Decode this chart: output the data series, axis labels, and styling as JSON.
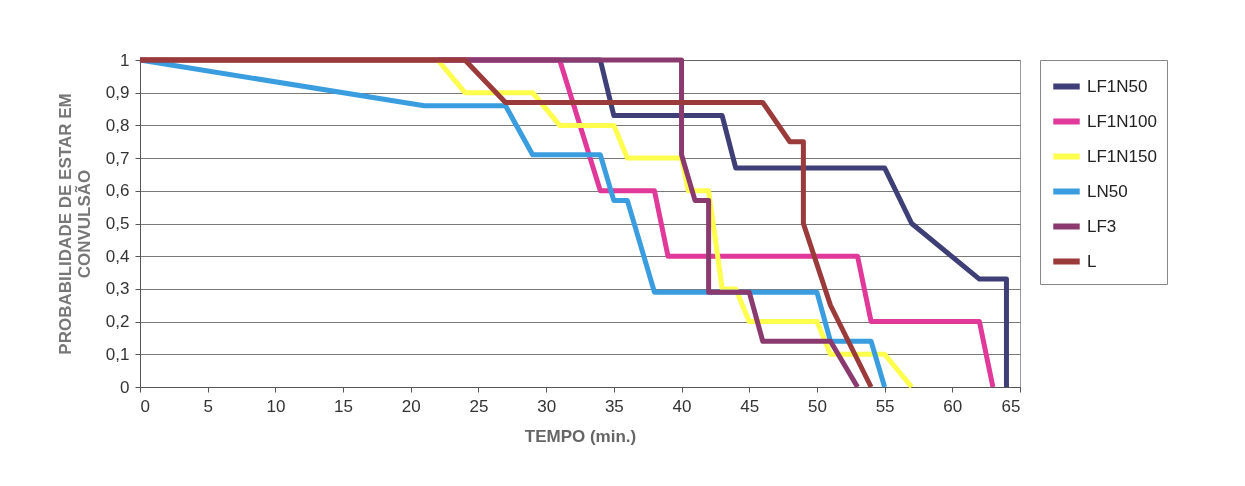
{
  "chart_data": {
    "type": "line",
    "xlabel": "TEMPO (min.)",
    "ylabel": "PROBABILIDADE DE ESTAR EM\nCONVULSÃO",
    "xlim": [
      0,
      65
    ],
    "ylim": [
      0,
      1
    ],
    "xticks": [
      0,
      5,
      10,
      15,
      20,
      25,
      30,
      35,
      40,
      45,
      50,
      55,
      60,
      65
    ],
    "yticks": [
      {
        "value": 0,
        "label": "0"
      },
      {
        "value": 0.1,
        "label": "0,1"
      },
      {
        "value": 0.2,
        "label": "0,2"
      },
      {
        "value": 0.3,
        "label": "0,3"
      },
      {
        "value": 0.4,
        "label": "0,4"
      },
      {
        "value": 0.5,
        "label": "0,5"
      },
      {
        "value": 0.6,
        "label": "0,6"
      },
      {
        "value": 0.7,
        "label": "0,7"
      },
      {
        "value": 0.8,
        "label": "0,8"
      },
      {
        "value": 0.9,
        "label": "0,9"
      },
      {
        "value": 1,
        "label": "1"
      }
    ],
    "grid": "y",
    "legend": "right",
    "marker": "none",
    "line_style": "solid",
    "series": [
      {
        "name": "LF1N50",
        "color": "#3f3f78",
        "x": [
          0,
          34,
          35,
          43,
          44,
          55,
          57,
          62,
          64,
          64
        ],
        "values": [
          1,
          1,
          0.83,
          0.83,
          0.67,
          0.67,
          0.5,
          0.33,
          0.33,
          0
        ]
      },
      {
        "name": "LF1N100",
        "color": "#e0399a",
        "x": [
          0,
          31,
          34,
          38,
          39,
          53,
          54,
          62,
          63
        ],
        "values": [
          1,
          1,
          0.6,
          0.6,
          0.4,
          0.4,
          0.2,
          0.2,
          0
        ]
      },
      {
        "name": "LF1N150",
        "color": "#ffff4d",
        "x": [
          0,
          22,
          24,
          29,
          31,
          35,
          36,
          40,
          40.5,
          42,
          43,
          44,
          45,
          50,
          51,
          55,
          57
        ],
        "values": [
          1,
          1,
          0.9,
          0.9,
          0.8,
          0.8,
          0.7,
          0.7,
          0.6,
          0.6,
          0.3,
          0.3,
          0.2,
          0.2,
          0.1,
          0.1,
          0
        ]
      },
      {
        "name": "LN50",
        "color": "#3a9de0",
        "x": [
          0,
          21,
          27,
          29,
          34,
          35,
          36,
          38,
          50,
          51,
          54,
          55
        ],
        "values": [
          1,
          0.86,
          0.86,
          0.71,
          0.71,
          0.57,
          0.57,
          0.29,
          0.29,
          0.14,
          0.14,
          0
        ]
      },
      {
        "name": "LF3",
        "color": "#8a3a6e",
        "x": [
          0,
          40,
          40,
          41,
          42,
          42,
          45,
          46,
          51,
          53
        ],
        "values": [
          1,
          1,
          0.71,
          0.57,
          0.57,
          0.29,
          0.29,
          0.14,
          0.14,
          0
        ]
      },
      {
        "name": "L",
        "color": "#9b3a3a",
        "x": [
          0,
          24,
          27,
          46,
          48,
          49,
          49,
          51,
          54
        ],
        "values": [
          1,
          1,
          0.87,
          0.87,
          0.75,
          0.75,
          0.5,
          0.25,
          0
        ]
      }
    ]
  }
}
